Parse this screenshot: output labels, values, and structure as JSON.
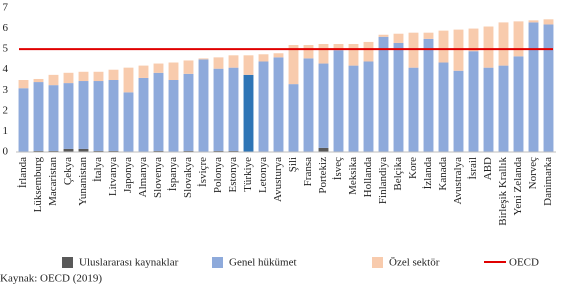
{
  "chart_data": {
    "type": "stacked_bar",
    "categories": [
      "İrlanda",
      "Lüksemburg",
      "Macaristan",
      "Çekya",
      "Yunanistan",
      "İtalya",
      "Litvanya",
      "Japonya",
      "Almanya",
      "Slovenya",
      "İspanya",
      "Slovakya",
      "İsviçre",
      "Polonya",
      "Estonya",
      "Türkiye",
      "Letonya",
      "Avusturya",
      "Şili",
      "Fransa",
      "Portekiz",
      "İsveç",
      "Meksika",
      "Hollanda",
      "Finlandiya",
      "Belçika",
      "Kore",
      "İzlanda",
      "Kanada",
      "Avustralya",
      "İsrail",
      "ABD",
      "Birleşik Krallık",
      "Yeni Zelanda",
      "Norveç",
      "Danimarka"
    ],
    "series": [
      {
        "name": "Uluslararası kaynaklar",
        "color": "#595959",
        "values": [
          0,
          0.05,
          0.05,
          0.15,
          0.15,
          0.05,
          0.05,
          0,
          0,
          0.05,
          0,
          0.05,
          0,
          0.05,
          0.05,
          0,
          0,
          0,
          0,
          0,
          0.2,
          0,
          0,
          0,
          0,
          0,
          0,
          0,
          0,
          0,
          0,
          0,
          0,
          0,
          0,
          0
        ]
      },
      {
        "name": "Genel hükümet",
        "color": "#8eaadb",
        "values": [
          3.1,
          3.35,
          3.2,
          3.2,
          3.3,
          3.4,
          3.45,
          2.9,
          3.6,
          3.8,
          3.5,
          3.75,
          4.5,
          4.0,
          4.05,
          3.75,
          4.4,
          4.6,
          3.3,
          4.55,
          4.1,
          4.95,
          4.2,
          4.4,
          5.6,
          5.3,
          4.1,
          5.5,
          4.35,
          3.95,
          4.9,
          4.1,
          4.2,
          4.65,
          6.3,
          6.2
        ]
      },
      {
        "name": "Özel sektör",
        "color": "#f8cbad",
        "values": [
          0.4,
          0.15,
          0.5,
          0.5,
          0.45,
          0.45,
          0.5,
          1.2,
          0.6,
          0.45,
          0.85,
          0.65,
          0.05,
          0.55,
          0.6,
          0.95,
          0.35,
          0.2,
          1.9,
          0.65,
          0.95,
          0.3,
          1.05,
          0.95,
          0.1,
          0.45,
          1.7,
          0.3,
          1.55,
          2.0,
          1.1,
          2.0,
          2.1,
          1.7,
          0.1,
          0.25
        ]
      }
    ],
    "highlight": {
      "category": "Türkiye",
      "color": "#2e75b6"
    },
    "reference_lines": [
      {
        "name": "OECD",
        "value": 5.0,
        "color": "#e00000"
      }
    ],
    "ylim": [
      0,
      7
    ],
    "yticks": [
      0,
      1,
      2,
      3,
      4,
      5,
      6,
      7
    ],
    "legend": "bottom",
    "source": "Kaynak: OECD (2019)"
  }
}
